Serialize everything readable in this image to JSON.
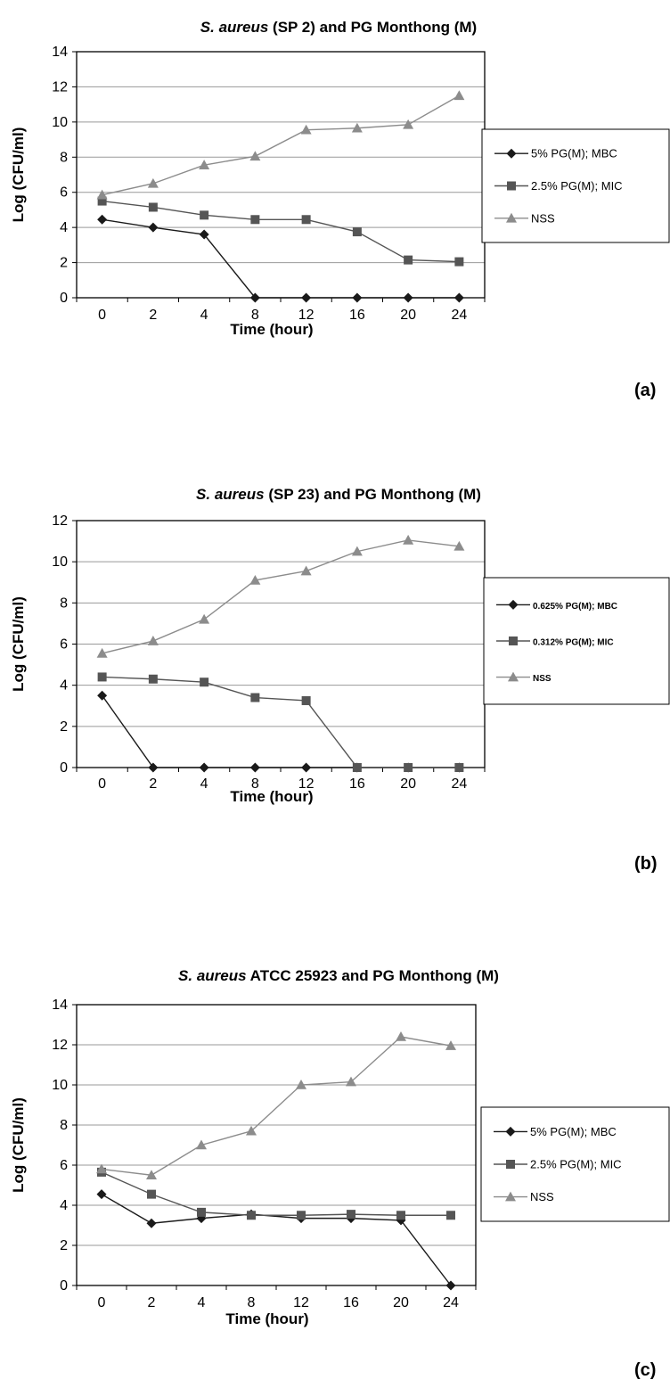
{
  "colors": {
    "mbc": "#1a1a1a",
    "mic": "#555555",
    "nss": "#8c8c8c",
    "grid": "#999999",
    "axis": "#000000"
  },
  "chart_data": [
    {
      "type": "line",
      "title_prefix": "S. aureus",
      "title_rest": " (SP 2) and PG Monthong (M)",
      "categories": [
        "0",
        "2",
        "4",
        "8",
        "12",
        "16",
        "20",
        "24"
      ],
      "xlabel": "Time (hour)",
      "ylabel": "Log (CFU/ml)",
      "ylim": [
        0,
        14
      ],
      "yticks": [
        0,
        2,
        4,
        6,
        8,
        10,
        12,
        14
      ],
      "grid": true,
      "legend_position": "right",
      "panel_label": "(a)",
      "series": [
        {
          "name": "5% PG(M); MBC",
          "marker": "diamond",
          "color_key": "mbc",
          "values": [
            4.45,
            4.0,
            3.6,
            0,
            0,
            0,
            0,
            0
          ]
        },
        {
          "name": "2.5% PG(M); MIC",
          "marker": "square",
          "color_key": "mic",
          "values": [
            5.5,
            5.15,
            4.7,
            4.45,
            4.45,
            3.75,
            2.15,
            2.05
          ]
        },
        {
          "name": "NSS",
          "marker": "triangle",
          "color_key": "nss",
          "values": [
            5.85,
            6.5,
            7.55,
            8.05,
            9.55,
            9.65,
            9.85,
            11.5
          ]
        }
      ]
    },
    {
      "type": "line",
      "title_prefix": "S. aureus",
      "title_rest": " (SP 23) and PG Monthong (M)",
      "categories": [
        "0",
        "2",
        "4",
        "8",
        "12",
        "16",
        "20",
        "24"
      ],
      "xlabel": "Time (hour)",
      "ylabel": "Log (CFU/ml)",
      "ylim": [
        0,
        12
      ],
      "yticks": [
        0,
        2,
        4,
        6,
        8,
        10,
        12
      ],
      "grid": true,
      "legend_position": "right",
      "panel_label": "(b)",
      "series": [
        {
          "name": "0.625% PG(M); MBC",
          "marker": "diamond",
          "color_key": "mbc",
          "values": [
            3.5,
            0,
            0,
            0,
            0,
            0,
            0,
            0
          ]
        },
        {
          "name": "0.312% PG(M); MIC",
          "marker": "square",
          "color_key": "mic",
          "values": [
            4.4,
            4.3,
            4.15,
            3.4,
            3.25,
            0,
            0,
            0
          ]
        },
        {
          "name": "NSS",
          "marker": "triangle",
          "color_key": "nss",
          "values": [
            5.55,
            6.15,
            7.2,
            9.1,
            9.55,
            10.5,
            11.05,
            10.75
          ]
        }
      ]
    },
    {
      "type": "line",
      "title_prefix": "S. aureus",
      "title_rest": " ATCC 25923 and PG Monthong (M)",
      "categories": [
        "0",
        "2",
        "4",
        "8",
        "12",
        "16",
        "20",
        "24"
      ],
      "xlabel": "Time (hour)",
      "ylabel": "Log (CFU/ml)",
      "ylim": [
        0,
        14
      ],
      "yticks": [
        0,
        2,
        4,
        6,
        8,
        10,
        12,
        14
      ],
      "grid": true,
      "legend_position": "right",
      "panel_label": "(c)",
      "series": [
        {
          "name": "5% PG(M); MBC",
          "marker": "diamond",
          "color_key": "mbc",
          "values": [
            4.55,
            3.1,
            3.35,
            3.55,
            3.35,
            3.35,
            3.25,
            0
          ]
        },
        {
          "name": "2.5% PG(M); MIC",
          "marker": "square",
          "color_key": "mic",
          "values": [
            5.65,
            4.55,
            3.65,
            3.5,
            3.5,
            3.55,
            3.5,
            3.5
          ]
        },
        {
          "name": "NSS",
          "marker": "triangle",
          "color_key": "nss",
          "values": [
            5.8,
            5.5,
            7.0,
            7.7,
            10.0,
            10.15,
            12.4,
            11.95
          ]
        }
      ]
    }
  ]
}
